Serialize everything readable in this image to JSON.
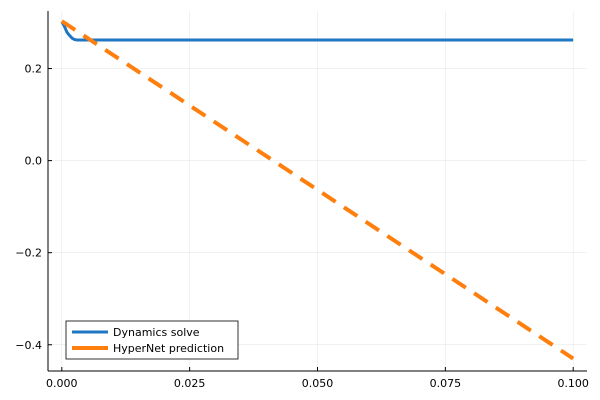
{
  "chart_data": {
    "type": "line",
    "title": "",
    "xlabel": "",
    "ylabel": "",
    "xlim": [
      -0.0027,
      0.1027
    ],
    "ylim": [
      -0.457,
      0.325
    ],
    "x_ticks": [
      0.0,
      0.025,
      0.05,
      0.075,
      0.1
    ],
    "x_tick_labels": [
      "0.000",
      "0.025",
      "0.050",
      "0.075",
      "0.100"
    ],
    "y_ticks": [
      -0.4,
      -0.2,
      0.0,
      0.2
    ],
    "y_tick_labels": [
      "−0.4",
      "−0.2",
      "0.0",
      "0.2"
    ],
    "grid": true,
    "legend_position": "bottom-left",
    "series": [
      {
        "name": "Dynamics solve",
        "color": "#1f77c4",
        "style": "solid",
        "x": [
          0.0,
          0.0005,
          0.001,
          0.0015,
          0.002,
          0.0025,
          0.003,
          0.004,
          0.006,
          0.01,
          0.03,
          0.05,
          0.075,
          0.1
        ],
        "y": [
          0.302,
          0.292,
          0.279,
          0.272,
          0.266,
          0.263,
          0.262,
          0.262,
          0.262,
          0.262,
          0.262,
          0.262,
          0.262,
          0.262
        ]
      },
      {
        "name": "HyperNet prediction",
        "color": "#ff7f0e",
        "style": "dashed",
        "x": [
          0.0,
          0.1
        ],
        "y": [
          0.303,
          -0.43
        ]
      }
    ]
  }
}
